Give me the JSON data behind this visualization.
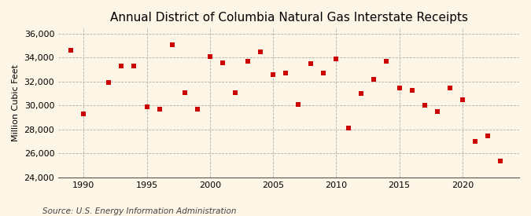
{
  "title": "Annual District of Columbia Natural Gas Interstate Receipts",
  "ylabel": "Million Cubic Feet",
  "source": "Source: U.S. Energy Information Administration",
  "background_color": "#fdf5e6",
  "plot_background_color": "#fdf5e6",
  "marker_color": "#cc0000",
  "marker": "s",
  "marker_size": 18,
  "years": [
    1989,
    1990,
    1992,
    1993,
    1994,
    1995,
    1996,
    1997,
    1998,
    1999,
    2000,
    2001,
    2002,
    2003,
    2004,
    2005,
    2006,
    2007,
    2008,
    2009,
    2010,
    2011,
    2012,
    2013,
    2014,
    2015,
    2016,
    2017,
    2018,
    2019,
    2020,
    2021,
    2022,
    2023
  ],
  "values": [
    34600,
    29300,
    31900,
    33300,
    33300,
    29900,
    29700,
    35100,
    31100,
    29700,
    34100,
    33600,
    31100,
    33700,
    34500,
    32600,
    32700,
    30100,
    33500,
    32700,
    33900,
    28100,
    31000,
    32200,
    33700,
    31500,
    31300,
    30000,
    29500,
    31500,
    30500,
    27000,
    27500,
    25400
  ],
  "xlim": [
    1988.0,
    2024.5
  ],
  "ylim": [
    24000,
    36500
  ],
  "yticks": [
    24000,
    26000,
    28000,
    30000,
    32000,
    34000,
    36000
  ],
  "xticks": [
    1990,
    1995,
    2000,
    2005,
    2010,
    2015,
    2020
  ],
  "grid_color": "#b0b0b0",
  "grid_linestyle": "--",
  "title_fontsize": 11,
  "label_fontsize": 8,
  "tick_fontsize": 8,
  "source_fontsize": 7.5
}
